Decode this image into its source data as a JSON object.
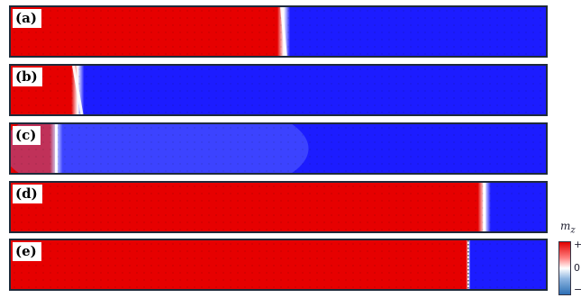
{
  "colors": {
    "up": "#e60000",
    "down": "#1c1cff",
    "wall": "#ffffff",
    "frame": "#1e2a3a"
  },
  "panels": [
    {
      "label": "(a)",
      "wall_fraction": 0.51,
      "wall_tilt": 0.004,
      "shading": "flat"
    },
    {
      "label": "(b)",
      "wall_fraction": 0.125,
      "wall_tilt": 0.008,
      "shading": "flat"
    },
    {
      "label": "(c)",
      "wall_fraction": 0.085,
      "wall_tilt": 0.0,
      "shading": "light-blue-region"
    },
    {
      "label": "(d)",
      "wall_fraction": 0.885,
      "wall_tilt": 0.0,
      "shading": "flat"
    },
    {
      "label": "(e)",
      "wall_fraction": 0.855,
      "wall_tilt": 0.0,
      "shading": "sharp"
    }
  ],
  "colorbar": {
    "title": "m",
    "subscript": "z",
    "tick_plus": "+",
    "tick_zero": "0",
    "tick_minus": "−"
  }
}
